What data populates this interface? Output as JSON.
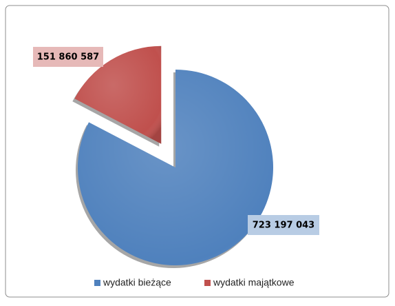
{
  "chart_data": {
    "type": "pie",
    "categories": [
      "wydatki bieżące",
      "wydatki majątkowe"
    ],
    "values": [
      723197043,
      151860587
    ],
    "value_labels": [
      "723 197 043",
      "151 860 587"
    ],
    "colors": [
      "#4f81bd",
      "#c0504d"
    ],
    "legend": "bottom"
  }
}
